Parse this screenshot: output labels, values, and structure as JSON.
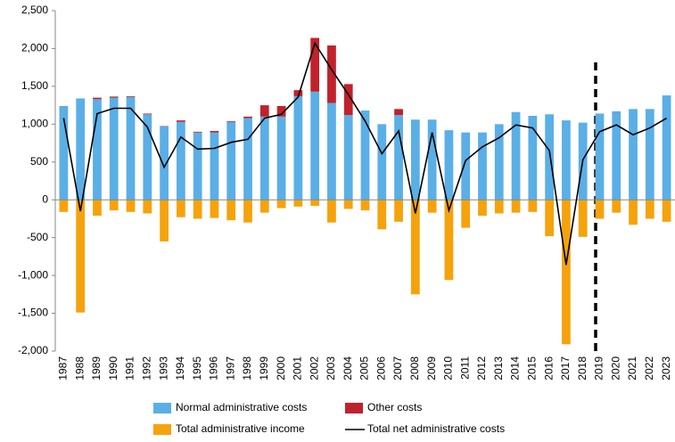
{
  "chart_data": {
    "type": "bar",
    "categories": [
      "1987",
      "1988",
      "1989",
      "1990",
      "1991",
      "1992",
      "1993",
      "1994",
      "1995",
      "1996",
      "1997",
      "1998",
      "1999",
      "2000",
      "2001",
      "2002",
      "2003",
      "2004",
      "2005",
      "2006",
      "2007",
      "2008",
      "2009",
      "2010",
      "2011",
      "2012",
      "2013",
      "2014",
      "2015",
      "2016",
      "2017",
      "2018",
      "2019",
      "2020",
      "2021",
      "2022",
      "2023"
    ],
    "stacked": true,
    "series": [
      {
        "name": "Normal administrative costs",
        "type": "bar",
        "color": "#5aafe6",
        "values": [
          1240,
          1340,
          1330,
          1350,
          1360,
          1130,
          970,
          1030,
          890,
          890,
          1030,
          1080,
          1100,
          1100,
          1370,
          1430,
          1280,
          1120,
          1180,
          1000,
          1120,
          1060,
          1060,
          920,
          890,
          890,
          1000,
          1160,
          1110,
          1130,
          1050,
          1020,
          1140,
          1170,
          1200,
          1200,
          1380
        ]
      },
      {
        "name": "Other costs",
        "type": "bar",
        "color": "#c0222c",
        "values": [
          0,
          0,
          20,
          15,
          10,
          10,
          5,
          20,
          10,
          20,
          10,
          20,
          150,
          140,
          80,
          710,
          760,
          410,
          0,
          0,
          80,
          0,
          0,
          0,
          0,
          0,
          0,
          0,
          0,
          0,
          0,
          0,
          0,
          0,
          0,
          0,
          0
        ]
      },
      {
        "name": "Total administrative income",
        "type": "bar",
        "color": "#f5a30c",
        "values": [
          -160,
          -1490,
          -210,
          -140,
          -160,
          -180,
          -550,
          -230,
          -250,
          -240,
          -270,
          -300,
          -170,
          -110,
          -90,
          -80,
          -300,
          -120,
          -140,
          -390,
          -290,
          -1250,
          -170,
          -1060,
          -370,
          -210,
          -180,
          -170,
          -160,
          -480,
          -1910,
          -490,
          -250,
          -170,
          -330,
          -250,
          -290
        ]
      },
      {
        "name": "Total net administrative costs",
        "type": "line",
        "color": "#000000",
        "values": [
          1080,
          -150,
          1140,
          1210,
          1210,
          960,
          430,
          830,
          670,
          680,
          760,
          800,
          1080,
          1130,
          1360,
          2070,
          1720,
          1390,
          1040,
          610,
          910,
          -180,
          890,
          -140,
          520,
          700,
          820,
          990,
          950,
          650,
          -860,
          530,
          900,
          990,
          860,
          950,
          1080
        ]
      }
    ],
    "ylim": [
      -2000,
      2500
    ],
    "yticks": [
      {
        "value": -2000,
        "label": "-2,000"
      },
      {
        "value": -1500,
        "label": "-1,500"
      },
      {
        "value": -1000,
        "label": "-1,000"
      },
      -500,
      0,
      500,
      {
        "value": 1000,
        "label": "1,000"
      },
      {
        "value": 1500,
        "label": "1,500"
      },
      {
        "value": 2000,
        "label": "2,000"
      },
      {
        "value": 2500,
        "label": "2,500"
      }
    ],
    "grid": false
  }
}
